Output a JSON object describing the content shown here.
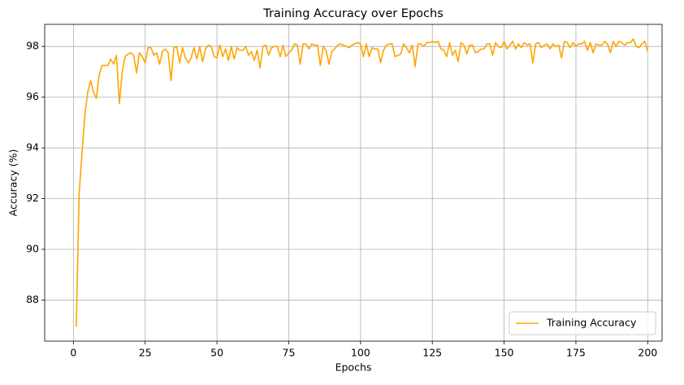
{
  "chart_data": {
    "type": "line",
    "title": "Training Accuracy over Epochs",
    "xlabel": "Epochs",
    "ylabel": "Accuracy (%)",
    "x": [
      1,
      2,
      3,
      4,
      5,
      6,
      7,
      8,
      9,
      10,
      11,
      12,
      13,
      14,
      15,
      16,
      17,
      18,
      19,
      20,
      21,
      22,
      23,
      24,
      25,
      26,
      27,
      28,
      29,
      30,
      31,
      32,
      33,
      34,
      35,
      36,
      37,
      38,
      39,
      40,
      41,
      42,
      43,
      44,
      45,
      46,
      47,
      48,
      49,
      50,
      51,
      52,
      53,
      54,
      55,
      56,
      57,
      58,
      59,
      60,
      61,
      62,
      63,
      64,
      65,
      66,
      67,
      68,
      69,
      70,
      71,
      72,
      73,
      74,
      75,
      76,
      77,
      78,
      79,
      80,
      81,
      82,
      83,
      84,
      85,
      86,
      87,
      88,
      89,
      90,
      91,
      92,
      93,
      94,
      95,
      96,
      97,
      98,
      99,
      100,
      101,
      102,
      103,
      104,
      105,
      106,
      107,
      108,
      109,
      110,
      111,
      112,
      113,
      114,
      115,
      116,
      117,
      118,
      119,
      120,
      121,
      122,
      123,
      124,
      125,
      126,
      127,
      128,
      129,
      130,
      131,
      132,
      133,
      134,
      135,
      136,
      137,
      138,
      139,
      140,
      141,
      142,
      143,
      144,
      145,
      146,
      147,
      148,
      149,
      150,
      151,
      152,
      153,
      154,
      155,
      156,
      157,
      158,
      159,
      160,
      161,
      162,
      163,
      164,
      165,
      166,
      167,
      168,
      169,
      170,
      171,
      172,
      173,
      174,
      175,
      176,
      177,
      178,
      179,
      180,
      181,
      182,
      183,
      184,
      185,
      186,
      187,
      188,
      189,
      190,
      191,
      192,
      193,
      194,
      195,
      196,
      197,
      198,
      199,
      200
    ],
    "series": [
      {
        "name": "Training Accuracy",
        "color": "#ffa500",
        "values": [
          86.95,
          92.2,
          93.8,
          95.3,
          96.2,
          96.65,
          96.2,
          95.95,
          96.9,
          97.25,
          97.25,
          97.25,
          97.5,
          97.3,
          97.65,
          95.75,
          97.0,
          97.6,
          97.7,
          97.75,
          97.65,
          96.95,
          97.75,
          97.6,
          97.35,
          97.95,
          97.95,
          97.65,
          97.75,
          97.3,
          97.8,
          97.9,
          97.75,
          96.65,
          97.95,
          98.0,
          97.35,
          97.95,
          97.55,
          97.35,
          97.55,
          97.95,
          97.5,
          98.0,
          97.4,
          97.9,
          98.05,
          98.0,
          97.6,
          97.55,
          98.05,
          97.6,
          97.9,
          97.45,
          98.0,
          97.5,
          97.95,
          97.85,
          97.85,
          98.0,
          97.65,
          97.8,
          97.45,
          97.85,
          97.15,
          98.0,
          98.05,
          97.65,
          97.95,
          98.0,
          98.0,
          97.6,
          98.05,
          97.6,
          97.75,
          97.85,
          98.1,
          98.05,
          97.3,
          98.1,
          98.1,
          97.9,
          98.1,
          98.05,
          98.05,
          97.25,
          98.0,
          97.85,
          97.3,
          97.8,
          97.9,
          98.05,
          98.1,
          98.05,
          98.0,
          97.95,
          98.05,
          98.1,
          98.15,
          98.1,
          97.6,
          98.1,
          97.6,
          97.95,
          97.9,
          97.9,
          97.35,
          97.85,
          98.05,
          98.1,
          98.1,
          97.6,
          97.65,
          97.7,
          98.1,
          97.95,
          97.75,
          98.05,
          97.2,
          98.1,
          98.1,
          98.0,
          98.15,
          98.15,
          98.2,
          98.15,
          98.2,
          97.9,
          97.85,
          97.6,
          98.15,
          97.65,
          97.85,
          97.4,
          98.15,
          98.05,
          97.7,
          98.05,
          98.05,
          97.75,
          97.8,
          97.9,
          97.9,
          98.1,
          98.1,
          97.65,
          98.15,
          98.0,
          97.95,
          98.2,
          97.9,
          98.05,
          98.2,
          97.9,
          98.1,
          97.95,
          98.15,
          98.05,
          98.1,
          97.35,
          98.1,
          98.15,
          97.95,
          98.05,
          98.1,
          97.9,
          98.1,
          98.0,
          98.05,
          97.55,
          98.2,
          98.15,
          97.95,
          98.15,
          98.0,
          98.1,
          98.1,
          98.2,
          97.85,
          98.15,
          97.75,
          98.1,
          98.05,
          98.05,
          98.2,
          98.1,
          97.75,
          98.2,
          98.0,
          98.2,
          98.15,
          98.05,
          98.15,
          98.15,
          98.3,
          98.0,
          97.95,
          98.1,
          98.2,
          97.8
        ]
      }
    ],
    "xlim": [
      -10,
      205
    ],
    "xticks": [
      0,
      25,
      50,
      75,
      100,
      125,
      150,
      175,
      200
    ],
    "ylim": [
      86.38,
      98.87
    ],
    "yticks": [
      88,
      90,
      92,
      94,
      96,
      98
    ],
    "grid": true,
    "legend": "lower right"
  }
}
